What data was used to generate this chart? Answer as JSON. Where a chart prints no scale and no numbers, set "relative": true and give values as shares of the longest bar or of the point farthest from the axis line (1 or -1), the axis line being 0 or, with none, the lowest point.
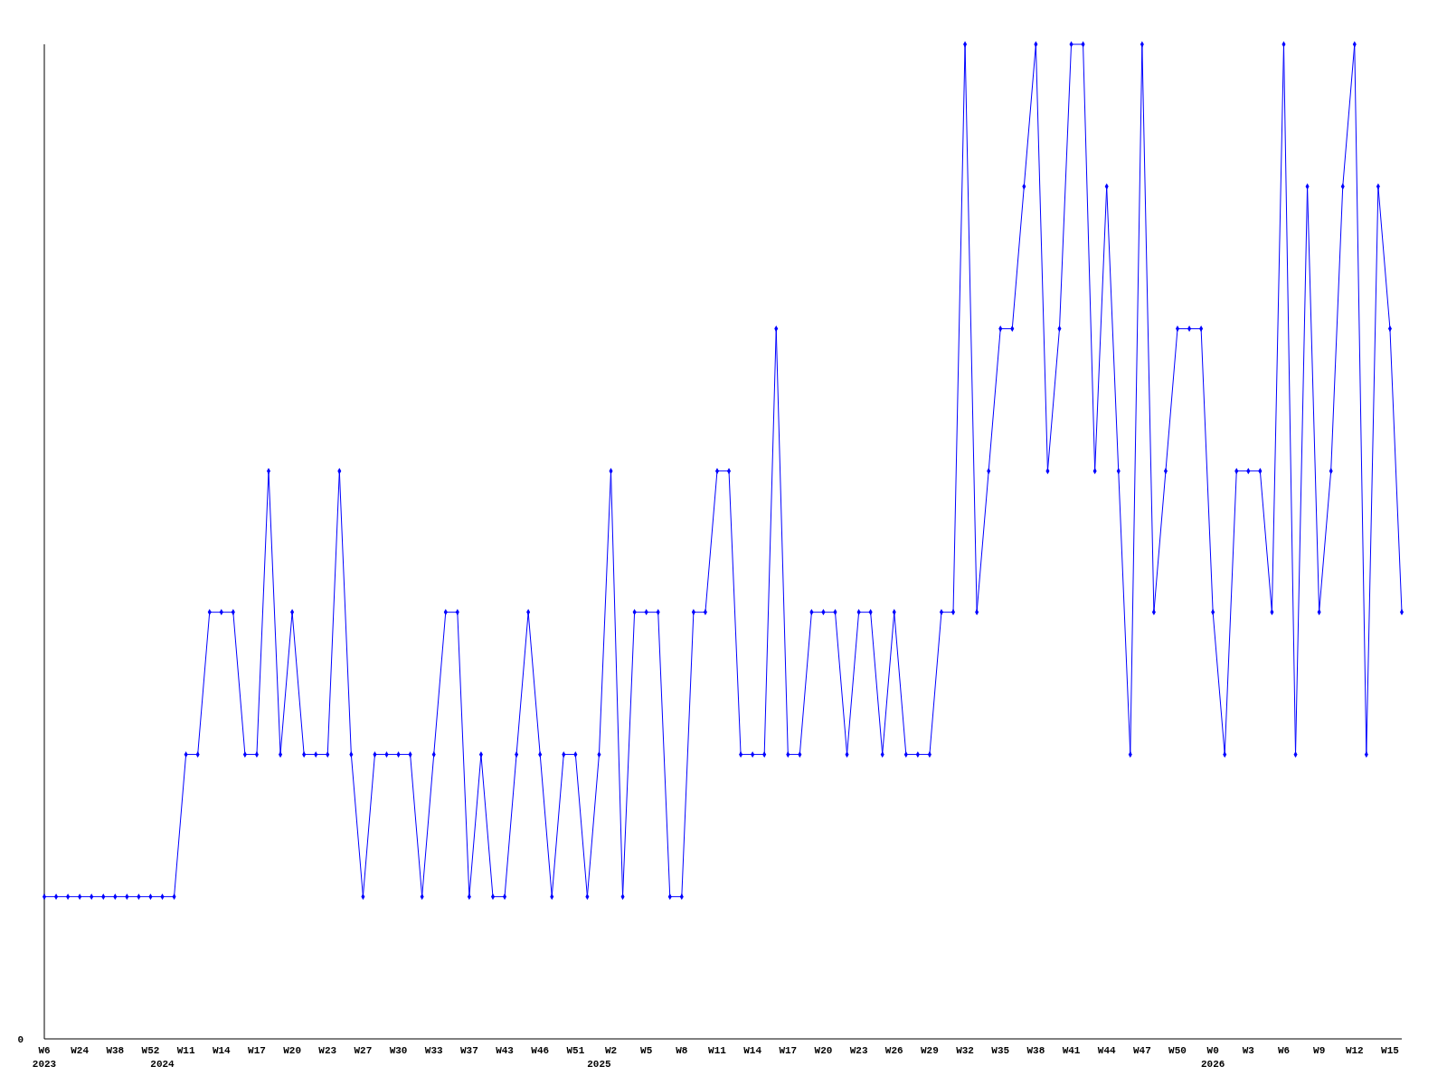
{
  "chart_data": {
    "type": "line",
    "relative": true,
    "marker": "diamond",
    "line_style": "solid",
    "annotations": [
      "0"
    ],
    "categories": [
      "W6\n2023",
      null,
      null,
      "W24",
      null,
      null,
      "W38",
      null,
      null,
      "W52",
      "\n2024",
      null,
      "W11",
      null,
      null,
      "W14",
      null,
      null,
      "W17",
      null,
      null,
      "W20",
      null,
      null,
      "W23",
      null,
      null,
      "W27",
      null,
      null,
      "W30",
      null,
      null,
      "W33",
      null,
      null,
      "W37",
      null,
      null,
      "W43",
      null,
      null,
      "W46",
      null,
      null,
      "W51",
      null,
      "\n2025",
      "W2",
      null,
      null,
      "W5",
      null,
      null,
      "W8",
      null,
      null,
      "W11",
      null,
      null,
      "W14",
      null,
      null,
      "W17",
      null,
      null,
      "W20",
      null,
      null,
      "W23",
      null,
      null,
      "W26",
      null,
      null,
      "W29",
      null,
      null,
      "W32",
      null,
      null,
      "W35",
      null,
      null,
      "W38",
      null,
      null,
      "W41",
      null,
      null,
      "W44",
      null,
      null,
      "W47",
      null,
      null,
      "W50",
      null,
      null,
      "W0\n2026",
      null,
      null,
      "W3",
      null,
      null,
      "W6",
      null,
      null,
      "W9",
      null,
      null,
      "W12",
      null,
      null,
      "W15",
      null
    ],
    "series": [
      {
        "color": "#0000ff",
        "values": [
          0.143,
          0.143,
          0.143,
          0.143,
          0.143,
          0.143,
          0.143,
          0.143,
          0.143,
          0.143,
          0.143,
          0.143,
          0.286,
          0.286,
          0.429,
          0.429,
          0.429,
          0.286,
          0.286,
          0.571,
          0.286,
          0.429,
          0.286,
          0.286,
          0.286,
          0.571,
          0.286,
          0.143,
          0.286,
          0.286,
          0.286,
          0.286,
          0.143,
          0.286,
          0.429,
          0.429,
          0.143,
          0.286,
          0.143,
          0.143,
          0.286,
          0.429,
          0.286,
          0.143,
          0.286,
          0.286,
          0.143,
          0.286,
          0.571,
          0.143,
          0.429,
          0.429,
          0.429,
          0.143,
          0.143,
          0.429,
          0.429,
          0.571,
          0.571,
          0.286,
          0.286,
          0.286,
          0.714,
          0.286,
          0.286,
          0.429,
          0.429,
          0.429,
          0.286,
          0.429,
          0.429,
          0.286,
          0.429,
          0.286,
          0.286,
          0.286,
          0.429,
          0.429,
          1,
          0.429,
          0.571,
          0.714,
          0.714,
          0.857,
          1,
          0.571,
          0.714,
          1,
          1,
          0.571,
          0.857,
          0.571,
          0.286,
          1,
          0.429,
          0.571,
          0.714,
          0.714,
          0.714,
          0.429,
          0.286,
          0.571,
          0.571,
          0.571,
          0.429,
          1,
          0.286,
          0.857,
          0.429,
          0.571,
          0.857,
          1,
          0.286,
          0.857,
          0.714,
          0.429
        ]
      }
    ]
  }
}
